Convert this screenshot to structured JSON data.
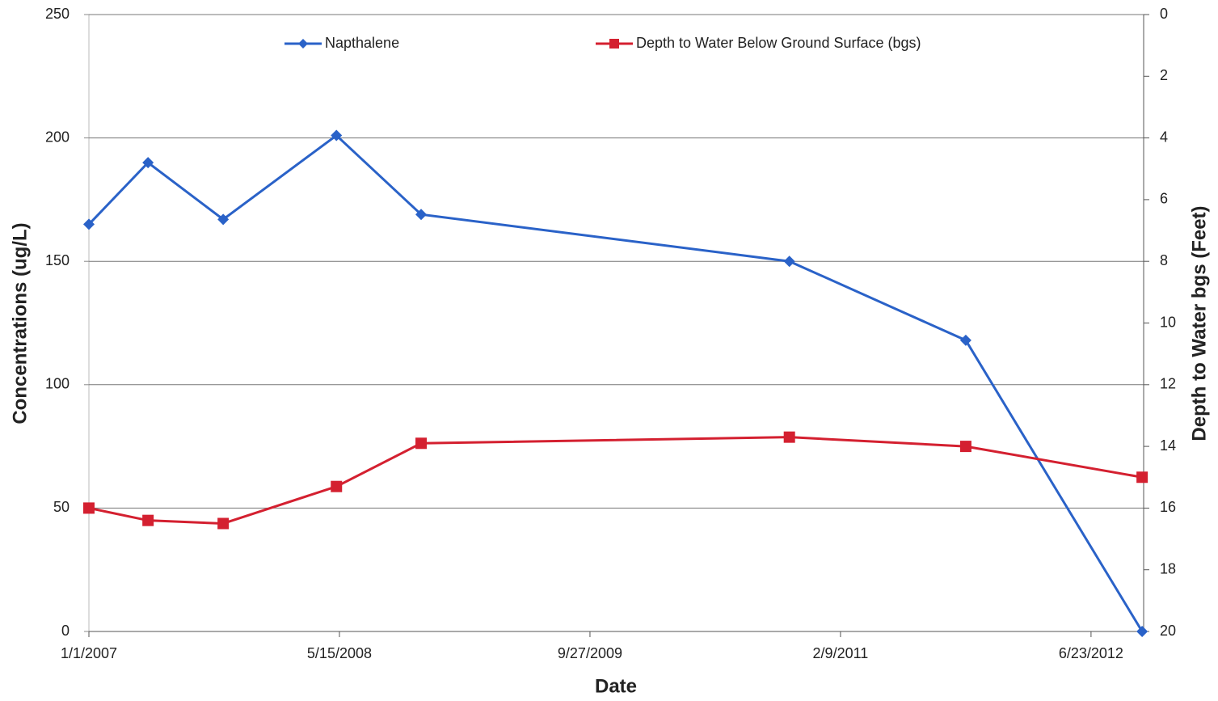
{
  "chart_data": {
    "type": "line",
    "x_label": "Date",
    "y_label": "Concentrations (ug/L)",
    "y2_label": "Depth to Water bgs (Feet)",
    "x": [
      "2007-01-01",
      "2007-04-29",
      "2007-09-26",
      "2008-05-09",
      "2008-10-25",
      "2010-10-30",
      "2011-10-17",
      "2012-10-03"
    ],
    "series": [
      {
        "name": "Napthalene",
        "color": "#2a62c8",
        "marker": "diamond",
        "values": [
          165,
          190,
          167,
          201,
          169,
          150,
          118,
          0
        ]
      },
      {
        "name": "Depth to Water Below Ground Surface (bgs)",
        "color": "#d42030",
        "marker": "square",
        "axis": "y2",
        "values": [
          16.0,
          16.4,
          16.5,
          15.3,
          13.9,
          13.7,
          14.0,
          15.0
        ]
      }
    ],
    "xlim": [
      "2007-01-01",
      "2012-10-06"
    ],
    "xticks": [
      {
        "value": "2007-01-01",
        "label": "1/1/2007"
      },
      {
        "value": "2008-05-15",
        "label": "5/15/2008"
      },
      {
        "value": "2009-09-27",
        "label": "9/27/2009"
      },
      {
        "value": "2011-02-09",
        "label": "2/9/2011"
      },
      {
        "value": "2012-06-23",
        "label": "6/23/2012"
      }
    ],
    "ylim": [
      0,
      250
    ],
    "yticks": [
      0,
      50,
      100,
      150,
      200,
      250
    ],
    "y2lim": [
      0,
      20
    ],
    "y2ticks": [
      0,
      2,
      4,
      6,
      8,
      10,
      12,
      14,
      16,
      18,
      20
    ],
    "y2_inverted": true,
    "grid": true,
    "legend": "top"
  }
}
